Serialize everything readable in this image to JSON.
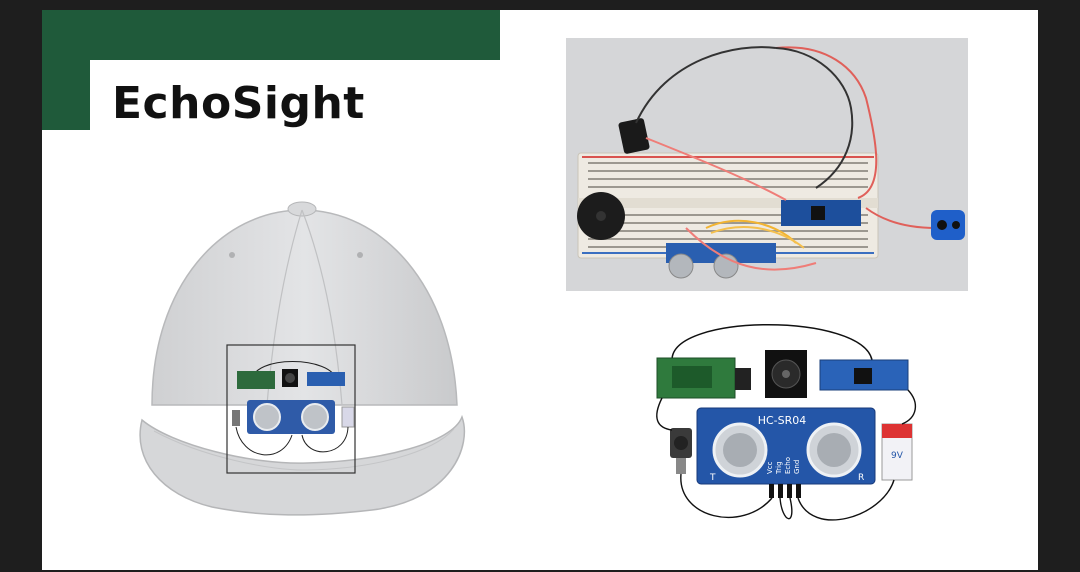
{
  "slide": {
    "title": "EchoSight",
    "accent_color": "#1f5a3a",
    "background": "#ffffff"
  },
  "images": {
    "cap": {
      "name": "cap-with-sensor-mount"
    },
    "breadboard": {
      "name": "breadboard-prototype-photo"
    },
    "circuit": {
      "name": "circuit-diagram",
      "sensor_label": "HC-SR04",
      "pin_labels": [
        "Vcc",
        "Trig",
        "Echo",
        "Gnd"
      ],
      "sensor_side_labels": [
        "T",
        "R"
      ],
      "battery_label": "9V"
    }
  }
}
